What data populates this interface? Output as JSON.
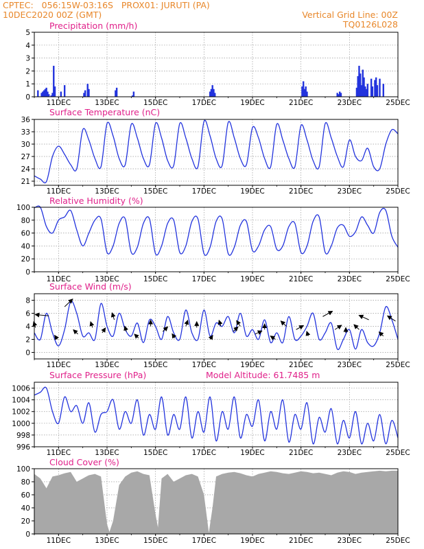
{
  "header": {
    "line1": "CPTEC:   056:15W-03:16S   PROX01: JURUTI (PA)",
    "line2": "10DEC2020 00Z (GMT)",
    "grid_note": "Vertical Grid Line: 00Z",
    "model_code": "TQ0126L028"
  },
  "colors": {
    "header": "#e8872a",
    "title": "#e0208a",
    "series": "#2233dd",
    "cloud": "#a8a8a8",
    "grid": "#999999",
    "wind_arrow": "#000000"
  },
  "x_axis": {
    "start": "10DEC2020 00Z",
    "end": "25DEC2020 00Z",
    "tick_labels": [
      "11DEC",
      "13DEC",
      "15DEC",
      "17DEC",
      "19DEC",
      "21DEC",
      "23DEC",
      "25DEC"
    ],
    "tick_days": [
      11,
      13,
      15,
      17,
      19,
      21,
      23,
      25
    ]
  },
  "chart_data": [
    {
      "type": "bar",
      "title": "Precipitation (mm/h)",
      "ylim": [
        0,
        5
      ],
      "yticks": [
        0,
        1,
        2,
        3,
        4,
        5
      ],
      "grid": true,
      "x_days": [
        10.15,
        10.3,
        10.35,
        10.4,
        10.45,
        10.5,
        10.55,
        10.6,
        10.7,
        10.75,
        10.8,
        10.85,
        11.1,
        11.25,
        12.05,
        12.1,
        12.2,
        12.25,
        13.35,
        13.4,
        14.05,
        14.1,
        17.25,
        17.3,
        17.35,
        17.4,
        17.45,
        21.05,
        21.1,
        21.15,
        21.2,
        21.25,
        22.5,
        22.55,
        22.6,
        22.65,
        23.3,
        23.35,
        23.4,
        23.45,
        23.5,
        23.55,
        23.6,
        23.65,
        23.7,
        23.75,
        23.9,
        23.95,
        24.05,
        24.1,
        24.15,
        24.25,
        24.4
      ],
      "values": [
        0.5,
        0.3,
        0.4,
        0.5,
        0.6,
        0.7,
        0.4,
        0.2,
        0.1,
        0.3,
        2.4,
        0.8,
        0.4,
        0.9,
        0.3,
        0.5,
        1.0,
        0.6,
        0.5,
        0.7,
        0.1,
        0.4,
        0.4,
        0.6,
        0.9,
        0.6,
        0.3,
        0.8,
        1.2,
        0.6,
        0.8,
        0.4,
        0.3,
        0.2,
        0.4,
        0.3,
        0.7,
        1.6,
        2.4,
        1.8,
        0.9,
        2.1,
        1.5,
        0.8,
        0.6,
        1.0,
        1.4,
        0.8,
        1.3,
        1.5,
        0.9,
        1.4,
        1.0
      ]
    },
    {
      "type": "line",
      "title": "Surface Temperature (nC)",
      "ylim": [
        20,
        36
      ],
      "yticks": [
        21,
        24,
        27,
        30,
        33,
        36
      ],
      "grid": true,
      "x_days": [
        10.0,
        10.25,
        10.5,
        10.75,
        11.0,
        11.25,
        11.5,
        11.75,
        12.0,
        12.25,
        12.5,
        12.75,
        13.0,
        13.25,
        13.5,
        13.75,
        14.0,
        14.25,
        14.5,
        14.75,
        15.0,
        15.25,
        15.5,
        15.75,
        16.0,
        16.25,
        16.5,
        16.75,
        17.0,
        17.25,
        17.5,
        17.75,
        18.0,
        18.25,
        18.5,
        18.75,
        19.0,
        19.25,
        19.5,
        19.75,
        20.0,
        20.25,
        20.5,
        20.75,
        21.0,
        21.25,
        21.5,
        21.75,
        22.0,
        22.25,
        22.5,
        22.75,
        23.0,
        23.25,
        23.5,
        23.75,
        24.0,
        24.25,
        24.5,
        24.75,
        25.0
      ],
      "values": [
        22.3,
        21.5,
        20.9,
        27.0,
        29.5,
        27.5,
        25.0,
        24.0,
        33.5,
        31.0,
        26.5,
        24.5,
        35.0,
        32.0,
        26.5,
        25.0,
        34.8,
        31.5,
        26.5,
        25.0,
        35.0,
        31.5,
        26.0,
        24.8,
        35.0,
        31.5,
        26.5,
        24.5,
        35.5,
        32.0,
        26.5,
        24.8,
        35.3,
        31.5,
        26.5,
        25.0,
        34.0,
        31.5,
        26.5,
        24.5,
        34.8,
        31.0,
        26.5,
        24.5,
        34.5,
        31.0,
        26.0,
        24.5,
        35.0,
        31.5,
        27.0,
        24.5,
        31.0,
        27.0,
        26.0,
        29.0,
        24.5,
        24.0,
        30.0,
        33.5,
        32.5
      ]
    },
    {
      "type": "line",
      "title": "Relative Humidity (%)",
      "ylim": [
        0,
        100
      ],
      "yticks": [
        0,
        20,
        40,
        60,
        80,
        100
      ],
      "grid": true,
      "x_days": [
        10.0,
        10.25,
        10.5,
        10.75,
        11.0,
        11.25,
        11.5,
        11.75,
        12.0,
        12.25,
        12.5,
        12.75,
        13.0,
        13.25,
        13.5,
        13.75,
        14.0,
        14.25,
        14.5,
        14.75,
        15.0,
        15.25,
        15.5,
        15.75,
        16.0,
        16.25,
        16.5,
        16.75,
        17.0,
        17.25,
        17.5,
        17.75,
        18.0,
        18.25,
        18.5,
        18.75,
        19.0,
        19.25,
        19.5,
        19.75,
        20.0,
        20.25,
        20.5,
        20.75,
        21.0,
        21.25,
        21.5,
        21.75,
        22.0,
        22.25,
        22.5,
        22.75,
        23.0,
        23.25,
        23.5,
        23.75,
        24.0,
        24.25,
        24.5,
        24.75,
        25.0
      ],
      "values": [
        99,
        100,
        70,
        60,
        80,
        85,
        95,
        65,
        40,
        60,
        80,
        82,
        30,
        40,
        75,
        82,
        30,
        38,
        75,
        82,
        28,
        40,
        75,
        80,
        30,
        40,
        78,
        82,
        28,
        38,
        78,
        82,
        28,
        38,
        72,
        78,
        33,
        40,
        65,
        70,
        35,
        40,
        70,
        75,
        30,
        40,
        78,
        85,
        30,
        40,
        68,
        72,
        55,
        62,
        85,
        72,
        60,
        92,
        95,
        55,
        38
      ]
    },
    {
      "type": "line",
      "title": "Surface Wind (m/s)",
      "ylim": [
        -1,
        9
      ],
      "yticks": [
        0,
        2,
        4,
        6,
        8
      ],
      "grid": true,
      "x_days": [
        10.0,
        10.25,
        10.5,
        10.75,
        11.0,
        11.25,
        11.5,
        11.75,
        12.0,
        12.25,
        12.5,
        12.75,
        13.0,
        13.25,
        13.5,
        13.75,
        14.0,
        14.25,
        14.5,
        14.75,
        15.0,
        15.25,
        15.5,
        15.75,
        16.0,
        16.25,
        16.5,
        16.75,
        17.0,
        17.25,
        17.5,
        17.75,
        18.0,
        18.25,
        18.5,
        18.75,
        19.0,
        19.25,
        19.5,
        19.75,
        20.0,
        20.25,
        20.5,
        20.75,
        21.0,
        21.25,
        21.5,
        21.75,
        22.0,
        22.25,
        22.5,
        22.75,
        23.0,
        23.25,
        23.5,
        23.75,
        24.0,
        24.25,
        24.5,
        24.75,
        25.0
      ],
      "values": [
        3.0,
        2.0,
        6.0,
        3.0,
        1.0,
        3.5,
        7.8,
        6.0,
        2.5,
        3.0,
        2.0,
        7.5,
        4.0,
        2.5,
        6.0,
        3.5,
        2.5,
        4.5,
        1.5,
        5.0,
        4.0,
        2.0,
        5.5,
        3.0,
        2.0,
        6.5,
        3.0,
        2.0,
        6.5,
        2.5,
        4.5,
        4.0,
        5.5,
        3.0,
        6.0,
        2.5,
        3.5,
        2.0,
        5.0,
        1.5,
        3.0,
        1.5,
        5.5,
        2.0,
        2.5,
        4.0,
        6.0,
        2.0,
        3.0,
        4.5,
        0.5,
        2.0,
        3.5,
        0.5,
        3.5,
        1.5,
        1.0,
        3.0,
        7.0,
        5.0,
        2.0
      ],
      "arrows_days": [
        10.05,
        10.6,
        10.95,
        11.25,
        11.8,
        12.4,
        12.8,
        13.3,
        13.8,
        14.3,
        14.8,
        15.3,
        15.8,
        16.25,
        16.7,
        17.25,
        17.7,
        18.2,
        18.5,
        19.1,
        19.5,
        19.95,
        20.4,
        20.8,
        21.3,
        21.9,
        22.4,
        22.85,
        23.4,
        23.8,
        24.4,
        24.9
      ],
      "arrows_speed": [
        3.8,
        5.6,
        2.0,
        7.0,
        2.8,
        3.8,
        3.0,
        5.0,
        3.2,
        2.2,
        4.0,
        3.2,
        2.2,
        4.0,
        3.8,
        2.0,
        4.0,
        3.2,
        4.0,
        2.8,
        3.5,
        2.0,
        4.0,
        3.5,
        2.5,
        5.5,
        3.5,
        3.0,
        3.5,
        5.0,
        2.5,
        4.8
      ],
      "arrows_dir_deg": [
        80,
        170,
        70,
        60,
        60,
        100,
        110,
        100,
        80,
        120,
        90,
        60,
        70,
        80,
        90,
        70,
        80,
        60,
        70,
        40,
        90,
        130,
        60,
        45,
        80,
        45,
        130,
        90,
        60,
        140,
        60,
        130
      ]
    },
    {
      "type": "line",
      "title": "Surface Pressure (hPa)",
      "subtitle": "Model Altitude: 61.7485 m",
      "ylim": [
        996,
        1007
      ],
      "yticks": [
        996,
        998,
        1000,
        1002,
        1004,
        1006
      ],
      "grid": true,
      "x_days": [
        10.0,
        10.25,
        10.5,
        10.75,
        11.0,
        11.25,
        11.5,
        11.75,
        12.0,
        12.25,
        12.5,
        12.75,
        13.0,
        13.25,
        13.5,
        13.75,
        14.0,
        14.25,
        14.5,
        14.75,
        15.0,
        15.25,
        15.5,
        15.75,
        16.0,
        16.25,
        16.5,
        16.75,
        17.0,
        17.25,
        17.5,
        17.75,
        18.0,
        18.25,
        18.5,
        18.75,
        19.0,
        19.25,
        19.5,
        19.75,
        20.0,
        20.25,
        20.5,
        20.75,
        21.0,
        21.25,
        21.5,
        21.75,
        22.0,
        22.25,
        22.5,
        22.75,
        23.0,
        23.25,
        23.5,
        23.75,
        24.0,
        24.25,
        24.5,
        24.75,
        25.0
      ],
      "values": [
        1004.8,
        1005.3,
        1006.0,
        1002.0,
        1000.0,
        1004.5,
        1002.0,
        1003.0,
        1000.0,
        1003.5,
        998.5,
        1001.5,
        1002.0,
        1004.0,
        999.0,
        1002.0,
        1000.0,
        1004.0,
        998.0,
        1001.5,
        999.0,
        1004.5,
        998.0,
        1001.5,
        999.0,
        1004.5,
        997.5,
        1002.0,
        998.5,
        1004.5,
        997.0,
        1002.0,
        999.0,
        1004.5,
        997.5,
        1001.5,
        999.5,
        1004.0,
        997.0,
        1002.0,
        999.0,
        1004.0,
        996.8,
        1001.5,
        999.0,
        1003.5,
        996.5,
        1001.0,
        998.5,
        1002.5,
        996.5,
        1000.5,
        997.5,
        1002.0,
        996.5,
        1000.0,
        997.0,
        1001.5,
        996.5,
        1000.5,
        997.5
      ]
    },
    {
      "type": "area",
      "title": "Cloud Cover (%)",
      "ylim": [
        0,
        100
      ],
      "yticks": [
        0,
        20,
        40,
        60,
        80,
        100
      ],
      "grid": true,
      "x_days": [
        10.0,
        10.25,
        10.5,
        10.75,
        11.0,
        11.25,
        11.5,
        11.75,
        12.0,
        12.25,
        12.5,
        12.75,
        13.0,
        13.1,
        13.25,
        13.5,
        13.75,
        14.0,
        14.25,
        14.5,
        14.75,
        15.0,
        15.1,
        15.25,
        15.5,
        15.75,
        16.0,
        16.25,
        16.5,
        16.75,
        17.0,
        17.2,
        17.35,
        17.5,
        17.75,
        18.0,
        18.25,
        18.5,
        18.75,
        19.0,
        19.25,
        19.5,
        19.75,
        20.0,
        20.25,
        20.5,
        20.75,
        21.0,
        21.25,
        21.5,
        21.75,
        22.0,
        22.25,
        22.5,
        22.75,
        23.0,
        23.25,
        23.5,
        23.75,
        24.0,
        24.25,
        24.5,
        24.75,
        25.0
      ],
      "values": [
        92,
        85,
        70,
        88,
        90,
        93,
        95,
        80,
        85,
        90,
        92,
        88,
        15,
        3,
        20,
        75,
        88,
        94,
        96,
        92,
        90,
        30,
        10,
        85,
        92,
        80,
        85,
        90,
        92,
        88,
        60,
        2,
        40,
        88,
        92,
        94,
        95,
        93,
        90,
        88,
        92,
        94,
        96,
        95,
        93,
        92,
        94,
        96,
        95,
        93,
        94,
        92,
        90,
        94,
        96,
        95,
        92,
        94,
        95,
        96,
        97,
        96,
        97,
        97
      ]
    }
  ]
}
